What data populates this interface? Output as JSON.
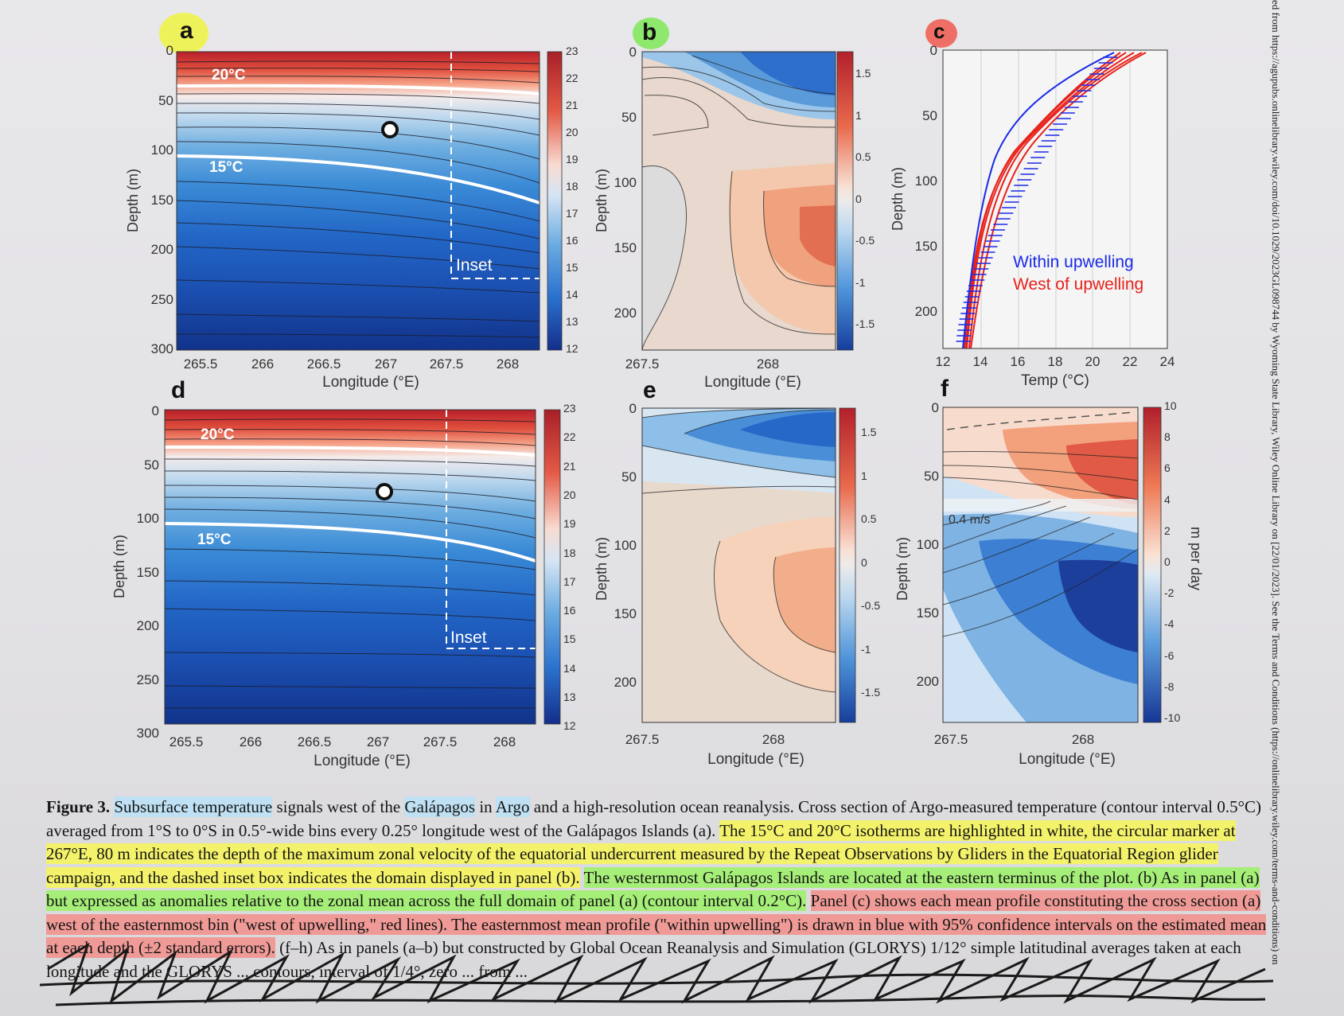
{
  "panels": {
    "a": {
      "letter": "a",
      "xticks": [
        "265.5",
        "266",
        "266.5",
        "267",
        "267.5",
        "268"
      ],
      "yticks": [
        "0",
        "50",
        "100",
        "150",
        "200",
        "250",
        "300"
      ],
      "ylabel": "Depth (m)",
      "xlabel": "Longitude (°E)",
      "iso20": "20°C",
      "iso15": "15°C",
      "inset": "Inset",
      "cbar": [
        "23",
        "22",
        "21",
        "20",
        "19",
        "18",
        "17",
        "16",
        "15",
        "14",
        "13",
        "12"
      ]
    },
    "b": {
      "letter": "b",
      "xticks": [
        "267.5",
        "268"
      ],
      "yticks": [
        "0",
        "50",
        "100",
        "150",
        "200"
      ],
      "ylabel": "Depth (m)",
      "xlabel": "Longitude (°E)",
      "cbar": [
        "1.5",
        "1",
        "0.5",
        "0",
        "-0.5",
        "-1",
        "-1.5"
      ]
    },
    "c": {
      "letter": "c",
      "xticks": [
        "12",
        "14",
        "16",
        "18",
        "20",
        "22",
        "24"
      ],
      "yticks": [
        "0",
        "50",
        "100",
        "150",
        "200"
      ],
      "ylabel": "Depth (m)",
      "xlabel": "Temp (°C)",
      "legend_within": "Within upwelling",
      "legend_west": "West of upwelling"
    },
    "d": {
      "letter": "d",
      "xticks": [
        "265.5",
        "266",
        "266.5",
        "267",
        "267.5",
        "268"
      ],
      "yticks": [
        "0",
        "50",
        "100",
        "150",
        "200",
        "250",
        "300"
      ],
      "ylabel": "Depth (m)",
      "xlabel": "Longitude (°E)",
      "iso20": "20°C",
      "iso15": "15°C",
      "inset": "Inset",
      "cbar": [
        "23",
        "22",
        "21",
        "20",
        "19",
        "18",
        "17",
        "16",
        "15",
        "14",
        "13",
        "12"
      ]
    },
    "e": {
      "letter": "e",
      "xticks": [
        "267.5",
        "268"
      ],
      "yticks": [
        "0",
        "50",
        "100",
        "150",
        "200"
      ],
      "ylabel": "Depth (m)",
      "xlabel": "Longitude (°E)",
      "cbar": [
        "1.5",
        "1",
        "0.5",
        "0",
        "-0.5",
        "-1",
        "-1.5"
      ]
    },
    "f": {
      "letter": "f",
      "xticks": [
        "267.5",
        "268"
      ],
      "yticks": [
        "0",
        "50",
        "100",
        "150",
        "200"
      ],
      "ylabel": "Depth (m)",
      "xlabel": "Longitude (°E)",
      "vel": "0.4 m/s",
      "cbar": [
        "10",
        "8",
        "6",
        "4",
        "2",
        "0",
        "-2",
        "-4",
        "-6",
        "-8",
        "-10"
      ],
      "cbar_label": "m per day"
    }
  },
  "caption": {
    "p1": "Figure 3.",
    "p2": " ",
    "p3": "Subsurface temperature",
    "p4": " signals west of the ",
    "p5": "Galápagos",
    "p6": " in ",
    "p7": "Argo",
    "p8": " and a high-resolution ocean reanalysis. Cross section of Argo-measured temperature (contour interval 0.5°C) averaged from 1°S to 0°S in 0.5°-wide bins every 0.25° longitude west of the Galápagos Islands (a). ",
    "p9": "The 15°C and 20°C isotherms are highlighted in white, the circular marker at 267°E, 80 m indicates the depth of the maximum zonal velocity of the equatorial undercurrent measured by the Repeat Observations by Gliders in the Equatorial Region glider campaign, and the dashed inset box indicates the domain displayed in panel (b).",
    "p10": " ",
    "p11": "The westernmost Galápagos Islands are located at the eastern terminus of the plot. (b) As in panel (a) but expressed as anomalies relative to the zonal mean across the full domain of panel (a) (contour interval 0.2°C).",
    "p12": " ",
    "p13": "Panel (c) shows each mean profile constituting the cross section (a) west of the easternmost bin (\"west of upwelling,\" red lines). The easternmost mean profile (\"within upwelling\") is drawn in blue with 95% confidence intervals on the estimated mean at each depth (±2 standard errors).",
    "p14": " (f–h) As in panels (a–b) but constructed by Global Ocean Reanalysis and Simulation (GLORYS) 1/12° simple latitudinal averages taken at each longitude and the GLORYS ... contours, interval of 1/4°, zero ... from ..."
  },
  "sidebar": "ed from https://agupubs.onlinelibrary.wiley.com/doi/10.1029/2023GL098744 by Wyoming State Library, Wiley Online Library on [22/01/2023]. See the Terms and Conditions (https://onlinelibrary.wiley.com/terms-and-conditions) on"
}
